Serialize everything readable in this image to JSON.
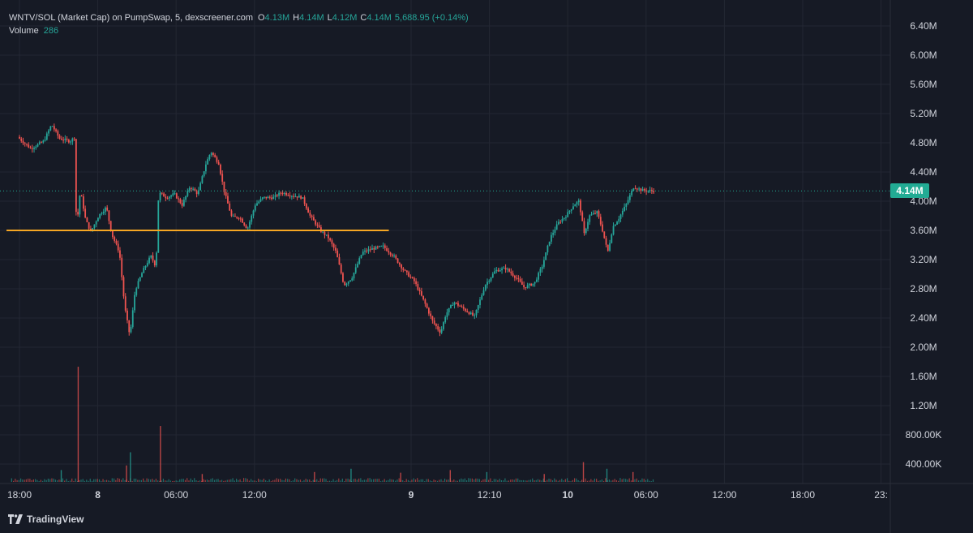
{
  "legend": {
    "title": "WNTV/SOL (Market Cap) on PumpSwap, 5, dexscreener.com",
    "o_label": "O",
    "o_value": "4.13M",
    "h_label": "H",
    "h_value": "4.14M",
    "l_label": "L",
    "l_value": "4.12M",
    "c_label": "C",
    "c_value": "4.14M",
    "change": "5,688.95 (+0.14%)",
    "volume_label": "Volume",
    "volume_value": "286"
  },
  "price_tag": "4.14M",
  "brand": "TradingView",
  "colors": {
    "background": "#161a25",
    "up": "#26a69a",
    "down": "#ef5350",
    "support_line": "#f5a623",
    "price_line": "#22ab94",
    "grid": "#232733",
    "axis_text": "#d1d4dc"
  },
  "chart_data": {
    "type": "candlestick",
    "y_axis": {
      "ticks": [
        6.4,
        6.0,
        5.6,
        5.2,
        4.8,
        4.4,
        4.0,
        3.6,
        3.2,
        2.8,
        2.4,
        2.0,
        1.6,
        1.2,
        0.8,
        0.4
      ],
      "tick_labels": [
        "6.40M",
        "6.00M",
        "5.60M",
        "5.20M",
        "4.80M",
        "4.40M",
        "4.00M",
        "3.60M",
        "3.20M",
        "2.80M",
        "2.40M",
        "2.00M",
        "1.60M",
        "1.20M",
        "800.00K",
        "400.00K"
      ],
      "unit": "M"
    },
    "x_axis": {
      "ticks": [
        0,
        6,
        12,
        18,
        24,
        30,
        36,
        42,
        48,
        54,
        60,
        66,
        72
      ],
      "tick_labels": [
        "18:00",
        "8",
        "06:00",
        "12:00",
        "9",
        "12:10",
        "10",
        "06:00",
        "12:00",
        "18:00",
        "23:"
      ],
      "tick_hours": [
        0,
        6,
        12,
        18,
        30,
        36,
        42,
        48,
        54,
        60,
        66
      ],
      "bold_labels": [
        "8",
        "9",
        "10"
      ]
    },
    "price_path": [
      [
        0,
        4.88
      ],
      [
        1,
        4.72
      ],
      [
        2,
        4.82
      ],
      [
        2.6,
        5.05
      ],
      [
        3.2,
        4.86
      ],
      [
        4.0,
        4.82
      ],
      [
        4.4,
        4.88
      ],
      [
        4.5,
        3.6
      ],
      [
        4.8,
        4.15
      ],
      [
        5.2,
        3.75
      ],
      [
        5.6,
        3.58
      ],
      [
        6.2,
        3.8
      ],
      [
        6.8,
        3.92
      ],
      [
        7.2,
        3.55
      ],
      [
        7.8,
        3.3
      ],
      [
        8.2,
        2.55
      ],
      [
        8.6,
        2.15
      ],
      [
        9.0,
        2.78
      ],
      [
        9.6,
        3.05
      ],
      [
        10.2,
        3.25
      ],
      [
        10.6,
        3.1
      ],
      [
        10.8,
        4.12
      ],
      [
        11.4,
        4.05
      ],
      [
        12.0,
        4.1
      ],
      [
        12.6,
        3.95
      ],
      [
        13.2,
        4.2
      ],
      [
        13.8,
        4.1
      ],
      [
        14.4,
        4.5
      ],
      [
        14.8,
        4.68
      ],
      [
        15.4,
        4.52
      ],
      [
        15.8,
        4.15
      ],
      [
        16.4,
        3.78
      ],
      [
        17.0,
        3.78
      ],
      [
        17.6,
        3.62
      ],
      [
        18.2,
        3.95
      ],
      [
        18.8,
        4.05
      ],
      [
        19.6,
        4.05
      ],
      [
        20.2,
        4.12
      ],
      [
        21.0,
        4.08
      ],
      [
        21.8,
        4.05
      ],
      [
        22.4,
        3.8
      ],
      [
        23.2,
        3.6
      ],
      [
        23.8,
        3.5
      ],
      [
        24.4,
        3.3
      ],
      [
        25.0,
        2.85
      ],
      [
        25.6,
        2.95
      ],
      [
        26.4,
        3.3
      ],
      [
        27.2,
        3.35
      ],
      [
        28.0,
        3.38
      ],
      [
        28.8,
        3.25
      ],
      [
        29.6,
        3.05
      ],
      [
        30.4,
        2.9
      ],
      [
        31.2,
        2.6
      ],
      [
        31.8,
        2.35
      ],
      [
        32.4,
        2.2
      ],
      [
        32.8,
        2.45
      ],
      [
        33.4,
        2.62
      ],
      [
        34.2,
        2.52
      ],
      [
        35.0,
        2.42
      ],
      [
        35.8,
        2.85
      ],
      [
        36.6,
        3.05
      ],
      [
        37.4,
        3.08
      ],
      [
        38.2,
        2.95
      ],
      [
        38.8,
        2.82
      ],
      [
        39.6,
        2.88
      ],
      [
        40.2,
        3.12
      ],
      [
        40.8,
        3.5
      ],
      [
        41.4,
        3.7
      ],
      [
        42.0,
        3.8
      ],
      [
        42.6,
        3.95
      ],
      [
        43.0,
        4.0
      ],
      [
        43.4,
        3.55
      ],
      [
        43.8,
        3.8
      ],
      [
        44.4,
        3.85
      ],
      [
        44.8,
        3.6
      ],
      [
        45.2,
        3.3
      ],
      [
        45.6,
        3.65
      ],
      [
        46.0,
        3.75
      ],
      [
        46.6,
        3.95
      ],
      [
        47.2,
        4.2
      ],
      [
        47.8,
        4.15
      ],
      [
        48.6,
        4.14
      ]
    ],
    "current_price": 4.14,
    "support_level": 3.6,
    "support_range_hours": [
      0,
      25.5
    ],
    "volume_spikes": [
      [
        4.5,
        1.75
      ],
      [
        8.5,
        0.45
      ],
      [
        8.2,
        0.25
      ],
      [
        10.8,
        0.85
      ],
      [
        3.2,
        0.18
      ],
      [
        14.0,
        0.12
      ],
      [
        22.6,
        0.15
      ],
      [
        25.4,
        0.2
      ],
      [
        29.2,
        0.14
      ],
      [
        33.0,
        0.18
      ],
      [
        35.8,
        0.15
      ],
      [
        40.2,
        0.12
      ],
      [
        43.2,
        0.3
      ],
      [
        45.0,
        0.2
      ],
      [
        47.0,
        0.15
      ]
    ]
  }
}
